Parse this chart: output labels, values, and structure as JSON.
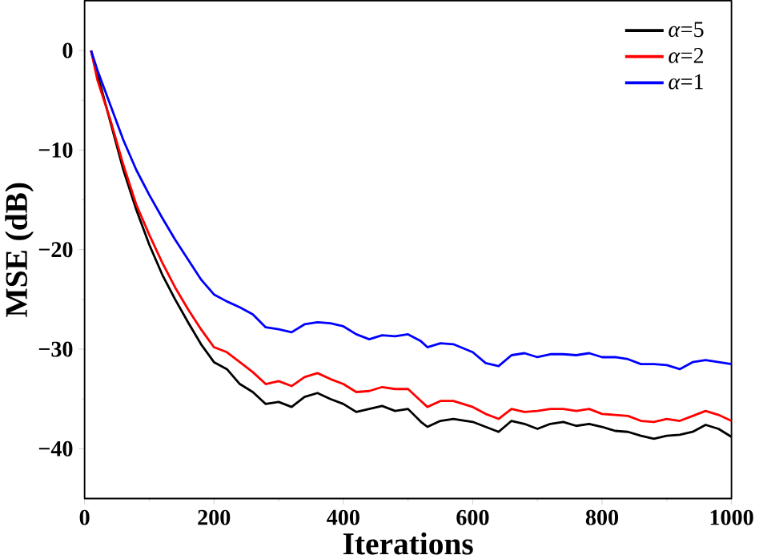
{
  "chart_data": {
    "type": "line",
    "xlabel": "Iterations",
    "ylabel": "MSE (dB)",
    "x": [
      10,
      20,
      40,
      60,
      80,
      100,
      120,
      140,
      160,
      180,
      200,
      220,
      240,
      260,
      280,
      300,
      320,
      340,
      360,
      380,
      400,
      420,
      440,
      460,
      480,
      500,
      520,
      530,
      550,
      570,
      600,
      620,
      640,
      660,
      680,
      700,
      720,
      740,
      760,
      780,
      800,
      820,
      840,
      860,
      880,
      900,
      920,
      940,
      960,
      980,
      1000
    ],
    "series": [
      {
        "name": "*α*=5",
        "color": "#000000",
        "values": [
          0,
          null,
          null,
          -12,
          -16,
          -19.5,
          -22.5,
          -25,
          -27.3,
          -29.5,
          -31.3,
          -32,
          -33.5,
          -34.3,
          -35.5,
          -35.3,
          -35.8,
          -34.8,
          -34.4,
          -35,
          -35.5,
          -36.3,
          -36,
          -35.7,
          -36.2,
          -36,
          -37.3,
          -37.8,
          -37.2,
          -37,
          -37.3,
          -37.8,
          -38.3,
          -37.2,
          -37.5,
          -38,
          -37.5,
          -37.3,
          -37.7,
          -37.5,
          -37.8,
          -38.2,
          -38.3,
          -38.7,
          -39,
          -38.7,
          -38.6,
          -38.3,
          -37.6,
          -38,
          -38.8
        ]
      },
      {
        "name": "*α*=2",
        "color": "#ff0000",
        "values": [
          0,
          -3,
          -7,
          -11.5,
          -15.5,
          -18.5,
          -21.3,
          -23.8,
          -26,
          -28,
          -29.8,
          -30.3,
          -31.3,
          -32.3,
          -33.5,
          -33.2,
          -33.7,
          -32.8,
          -32.4,
          -33,
          -33.5,
          -34.3,
          -34.2,
          -33.8,
          -34,
          -34,
          -35.2,
          -35.8,
          -35.2,
          -35.2,
          -35.8,
          -36.5,
          -37,
          -36,
          -36.3,
          -36.2,
          -36,
          -36,
          -36.2,
          -36,
          -36.5,
          -36.6,
          -36.7,
          -37.2,
          -37.3,
          -37,
          -37.2,
          -36.7,
          -36.2,
          -36.6,
          -37.2
        ]
      },
      {
        "name": "*α*=1",
        "color": "#0000ff",
        "values": [
          0,
          -2,
          -5.5,
          -9,
          -12,
          -14.5,
          -16.8,
          -19,
          -21,
          -23,
          -24.5,
          -25.2,
          -25.8,
          -26.5,
          -27.8,
          -28,
          -28.3,
          -27.5,
          -27.3,
          -27.4,
          -27.7,
          -28.5,
          -29,
          -28.6,
          -28.7,
          -28.5,
          -29.2,
          -29.8,
          -29.4,
          -29.5,
          -30.3,
          -31.4,
          -31.7,
          -30.6,
          -30.4,
          -30.8,
          -30.5,
          -30.5,
          -30.6,
          -30.4,
          -30.8,
          -30.8,
          -31,
          -31.5,
          -31.5,
          -31.6,
          -32,
          -31.3,
          -31.1,
          -31.3,
          -31.5
        ]
      }
    ],
    "xlim": [
      0,
      1000
    ],
    "ylim": [
      -45,
      5
    ],
    "xticks": [
      0,
      200,
      400,
      600,
      800,
      1000
    ],
    "yticks": [
      {
        "value": -40,
        "label": "−40"
      },
      {
        "value": -30,
        "label": "−30"
      },
      {
        "value": -20,
        "label": "−20"
      },
      {
        "value": -10,
        "label": "−10"
      },
      0
    ],
    "legend": "top right",
    "grid": false,
    "marker": "none",
    "line_style": "solid"
  }
}
